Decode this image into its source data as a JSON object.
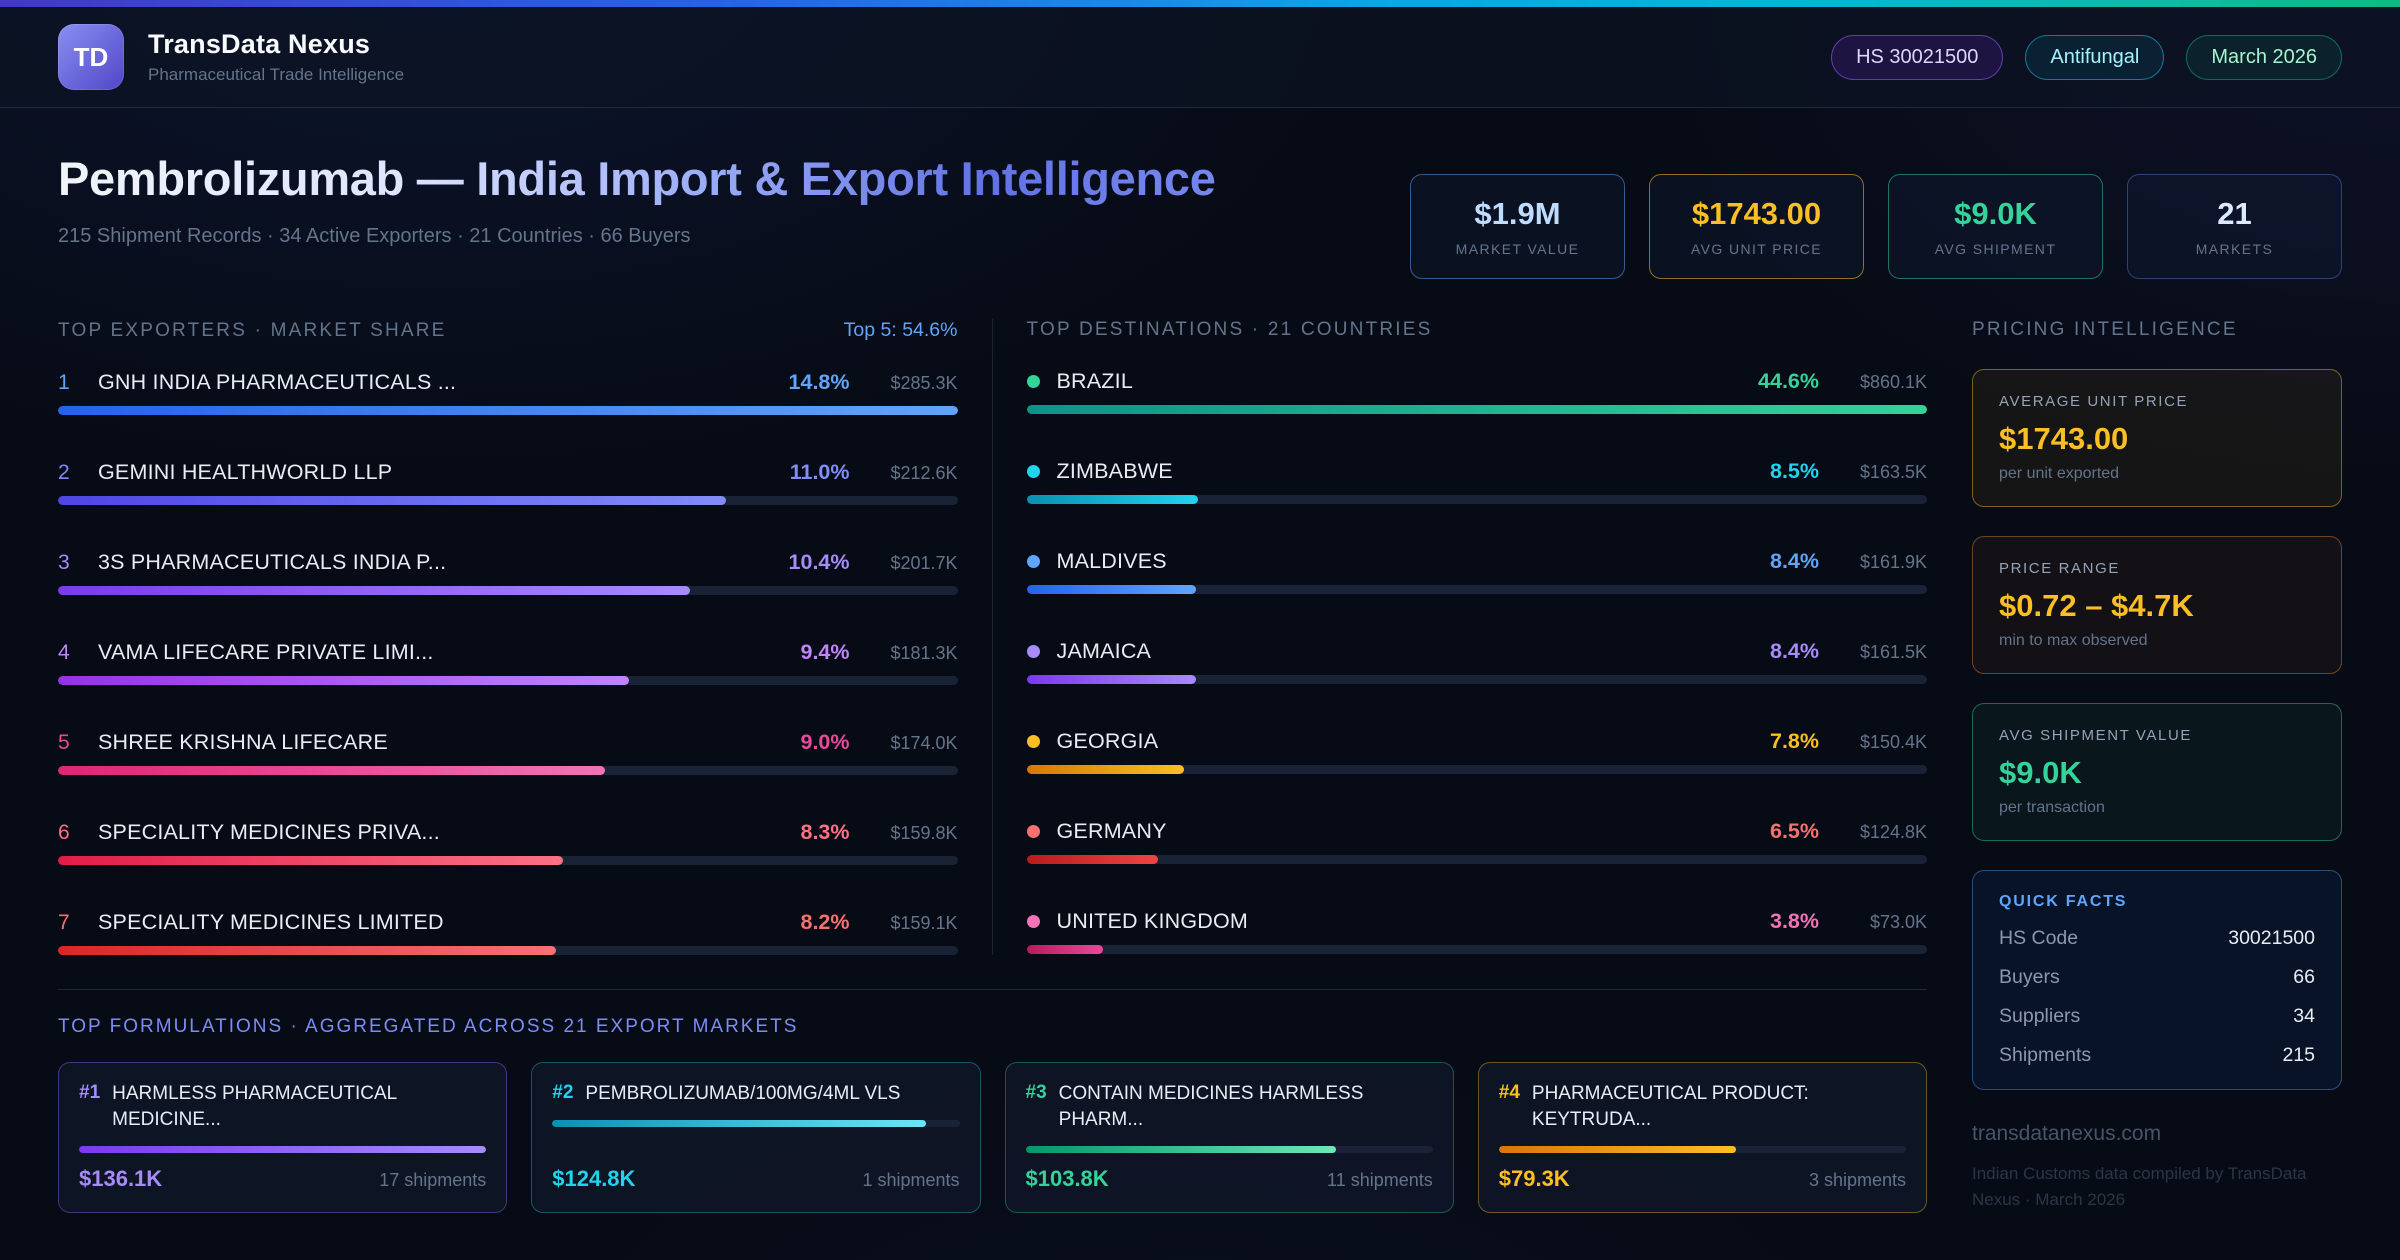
{
  "theme": {
    "background": "#070b15",
    "accent_blue": "#60a5fa",
    "accent_amber": "#fbbf24",
    "accent_green": "#34d399",
    "accent_cyan": "#22d3ee",
    "accent_purple": "#a78bfa",
    "accent_pink": "#f472b6",
    "accent_red": "#f87171",
    "accent_indigo": "#818cf8"
  },
  "header": {
    "logo_initials": "TD",
    "title": "TransData Nexus",
    "subtitle": "Pharmaceutical Trade Intelligence",
    "badges": [
      {
        "label": "HS 30021500",
        "color": "#ddd6fe",
        "border": "rgba(139,92,246,0.6)",
        "bg": "rgba(109,40,217,0.18)"
      },
      {
        "label": "Antifungal",
        "color": "#a5f3fc",
        "border": "rgba(34,211,238,0.5)",
        "bg": "rgba(8,145,178,0.12)"
      },
      {
        "label": "March 2026",
        "color": "#a7f3d0",
        "border": "rgba(16,185,129,0.5)",
        "bg": "rgba(5,150,105,0.12)"
      }
    ]
  },
  "hero": {
    "title": "Pembrolizumab — India Import & Export Intelligence",
    "subtitle": "215 Shipment Records · 34 Active Exporters · 21 Countries · 66 Buyers",
    "stats": [
      {
        "value": "$1.9M",
        "label": "MARKET VALUE",
        "color": "#bfdbfe",
        "border": "rgba(96,165,250,0.5)"
      },
      {
        "value": "$1743.00",
        "label": "AVG UNIT PRICE",
        "color": "#fbbf24",
        "border": "rgba(251,191,36,0.55)"
      },
      {
        "value": "$9.0K",
        "label": "AVG SHIPMENT",
        "color": "#34d399",
        "border": "rgba(52,211,153,0.5)"
      },
      {
        "value": "21",
        "label": "MARKETS",
        "color": "#dbeafe",
        "border": "rgba(96,165,250,0.35)"
      }
    ]
  },
  "exporters": {
    "title": "TOP EXPORTERS · MARKET SHARE",
    "meta": "Top 5: 54.6%",
    "items": [
      {
        "rank": "1",
        "name": "GNH INDIA PHARMACEUTICALS ...",
        "pct": "14.8%",
        "value": "$285.3K",
        "accent": "#60a5fa",
        "c1": "#2563eb",
        "c2": "#60a5fa",
        "bar_pct": 100
      },
      {
        "rank": "2",
        "name": "GEMINI HEALTHWORLD LLP",
        "pct": "11.0%",
        "value": "$212.6K",
        "accent": "#818cf8",
        "c1": "#4f46e5",
        "c2": "#818cf8",
        "bar_pct": 74.3
      },
      {
        "rank": "3",
        "name": "3S PHARMACEUTICALS INDIA P...",
        "pct": "10.4%",
        "value": "$201.7K",
        "accent": "#a78bfa",
        "c1": "#7c3aed",
        "c2": "#a78bfa",
        "bar_pct": 70.3
      },
      {
        "rank": "4",
        "name": "VAMA LIFECARE PRIVATE LIMI...",
        "pct": "9.4%",
        "value": "$181.3K",
        "accent": "#c084fc",
        "c1": "#9333ea",
        "c2": "#c084fc",
        "bar_pct": 63.5
      },
      {
        "rank": "5",
        "name": "SHREE KRISHNA LIFECARE",
        "pct": "9.0%",
        "value": "$174.0K",
        "accent": "#ec4899",
        "c1": "#db2777",
        "c2": "#f472b6",
        "bar_pct": 60.8
      },
      {
        "rank": "6",
        "name": "SPECIALITY MEDICINES PRIVA...",
        "pct": "8.3%",
        "value": "$159.8K",
        "accent": "#fb7185",
        "c1": "#e11d48",
        "c2": "#fb7185",
        "bar_pct": 56.1
      },
      {
        "rank": "7",
        "name": "SPECIALITY MEDICINES LIMITED",
        "pct": "8.2%",
        "value": "$159.1K",
        "accent": "#f87171",
        "c1": "#dc2626",
        "c2": "#f87171",
        "bar_pct": 55.4
      }
    ]
  },
  "destinations": {
    "title": "TOP DESTINATIONS · 21 COUNTRIES",
    "items": [
      {
        "name": "BRAZIL",
        "pct": "44.6%",
        "value": "$860.1K",
        "accent": "#34d399",
        "c1": "#0d9488",
        "c2": "#34d399",
        "bar_pct": 100
      },
      {
        "name": "ZIMBABWE",
        "pct": "8.5%",
        "value": "$163.5K",
        "accent": "#22d3ee",
        "c1": "#0891b2",
        "c2": "#22d3ee",
        "bar_pct": 19.1
      },
      {
        "name": "MALDIVES",
        "pct": "8.4%",
        "value": "$161.9K",
        "accent": "#60a5fa",
        "c1": "#2563eb",
        "c2": "#60a5fa",
        "bar_pct": 18.8
      },
      {
        "name": "JAMAICA",
        "pct": "8.4%",
        "value": "$161.5K",
        "accent": "#a78bfa",
        "c1": "#7c3aed",
        "c2": "#a78bfa",
        "bar_pct": 18.8
      },
      {
        "name": "GEORGIA",
        "pct": "7.8%",
        "value": "$150.4K",
        "accent": "#fbbf24",
        "c1": "#d97706",
        "c2": "#fbbf24",
        "bar_pct": 17.5
      },
      {
        "name": "GERMANY",
        "pct": "6.5%",
        "value": "$124.8K",
        "accent": "#f87171",
        "c1": "#b91c1c",
        "c2": "#ef4444",
        "bar_pct": 14.6
      },
      {
        "name": "UNITED KINGDOM",
        "pct": "3.8%",
        "value": "$73.0K",
        "accent": "#f472b6",
        "c1": "#be185d",
        "c2": "#ec4899",
        "bar_pct": 8.5
      }
    ]
  },
  "pricing": {
    "title": "PRICING INTELLIGENCE",
    "cards": [
      {
        "label": "AVERAGE UNIT PRICE",
        "value": "$1743.00",
        "sub": "per unit exported",
        "color": "#fbbf24",
        "border": "rgba(251,191,36,0.45)",
        "bg": "rgba(251,191,36,0.06)"
      },
      {
        "label": "PRICE RANGE",
        "value": "$0.72 – $4.7K",
        "sub": "min to max observed",
        "color": "#fbbf24",
        "border": "rgba(251,146,60,0.4)",
        "bg": "rgba(251,146,60,0.05)"
      },
      {
        "label": "AVG SHIPMENT VALUE",
        "value": "$9.0K",
        "sub": "per transaction",
        "color": "#34d399",
        "border": "rgba(52,211,153,0.45)",
        "bg": "rgba(52,211,153,0.06)"
      }
    ],
    "quick_facts": {
      "title": "QUICK FACTS",
      "rows": [
        {
          "label": "HS Code",
          "value": "30021500"
        },
        {
          "label": "Buyers",
          "value": "66"
        },
        {
          "label": "Suppliers",
          "value": "34"
        },
        {
          "label": "Shipments",
          "value": "215"
        }
      ]
    },
    "footer_site": "transdatanexus.com",
    "footer_note": "Indian Customs data compiled by TransData Nexus · March 2026"
  },
  "formulations": {
    "title": "TOP FORMULATIONS · AGGREGATED ACROSS 21 EXPORT MARKETS",
    "items": [
      {
        "rank": "#1",
        "name": "HARMLESS PHARMACEUTICAL MEDICINE...",
        "value": "$136.1K",
        "shipments": "17 shipments",
        "accent": "#a78bfa",
        "c1": "#7c3aed",
        "c2": "#a78bfa",
        "bar_pct": 100,
        "border": "rgba(139,92,246,0.45)"
      },
      {
        "rank": "#2",
        "name": "PEMBROLIZUMAB/100MG/4ML VLS",
        "value": "$124.8K",
        "shipments": "1 shipments",
        "accent": "#22d3ee",
        "c1": "#0891b2",
        "c2": "#67e8f9",
        "bar_pct": 91.7,
        "border": "rgba(34,211,238,0.35)"
      },
      {
        "rank": "#3",
        "name": "CONTAIN MEDICINES HARMLESS PHARM...",
        "value": "$103.8K",
        "shipments": "11 shipments",
        "accent": "#34d399",
        "c1": "#059669",
        "c2": "#6ee7b7",
        "bar_pct": 76.3,
        "border": "rgba(52,211,153,0.35)"
      },
      {
        "rank": "#4",
        "name": "PHARMACEUTICAL PRODUCT: KEYTRUDA...",
        "value": "$79.3K",
        "shipments": "3 shipments",
        "accent": "#fbbf24",
        "c1": "#d97706",
        "c2": "#fbbf24",
        "bar_pct": 58.3,
        "border": "rgba(251,191,36,0.4)"
      }
    ]
  },
  "chart_data": [
    {
      "type": "bar",
      "title": "TOP EXPORTERS · MARKET SHARE",
      "categories": [
        "GNH INDIA PHARMACEUTICALS ...",
        "GEMINI HEALTHWORLD LLP",
        "3S PHARMACEUTICALS INDIA P...",
        "VAMA LIFECARE PRIVATE LIMI...",
        "SHREE KRISHNA LIFECARE",
        "SPECIALITY MEDICINES PRIVA...",
        "SPECIALITY MEDICINES LIMITED"
      ],
      "series": [
        {
          "name": "market_share_pct",
          "values": [
            14.8,
            11.0,
            10.4,
            9.4,
            9.0,
            8.3,
            8.2
          ]
        },
        {
          "name": "value_usd_thousands",
          "values": [
            285.3,
            212.6,
            201.7,
            181.3,
            174.0,
            159.8,
            159.1
          ]
        }
      ]
    },
    {
      "type": "bar",
      "title": "TOP DESTINATIONS · 21 COUNTRIES",
      "categories": [
        "BRAZIL",
        "ZIMBABWE",
        "MALDIVES",
        "JAMAICA",
        "GEORGIA",
        "GERMANY",
        "UNITED KINGDOM"
      ],
      "series": [
        {
          "name": "share_pct",
          "values": [
            44.6,
            8.5,
            8.4,
            8.4,
            7.8,
            6.5,
            3.8
          ]
        },
        {
          "name": "value_usd_thousands",
          "values": [
            860.1,
            163.5,
            161.9,
            161.5,
            150.4,
            124.8,
            73.0
          ]
        }
      ]
    },
    {
      "type": "bar",
      "title": "TOP FORMULATIONS · AGGREGATED ACROSS 21 EXPORT MARKETS",
      "categories": [
        "HARMLESS PHARMACEUTICAL MEDICINE...",
        "PEMBROLIZUMAB/100MG/4ML VLS",
        "CONTAIN MEDICINES HARMLESS PHARM...",
        "PHARMACEUTICAL PRODUCT: KEYTRUDA..."
      ],
      "series": [
        {
          "name": "value_usd_thousands",
          "values": [
            136.1,
            124.8,
            103.8,
            79.3
          ]
        },
        {
          "name": "shipments",
          "values": [
            17,
            1,
            11,
            3
          ]
        }
      ]
    }
  ]
}
